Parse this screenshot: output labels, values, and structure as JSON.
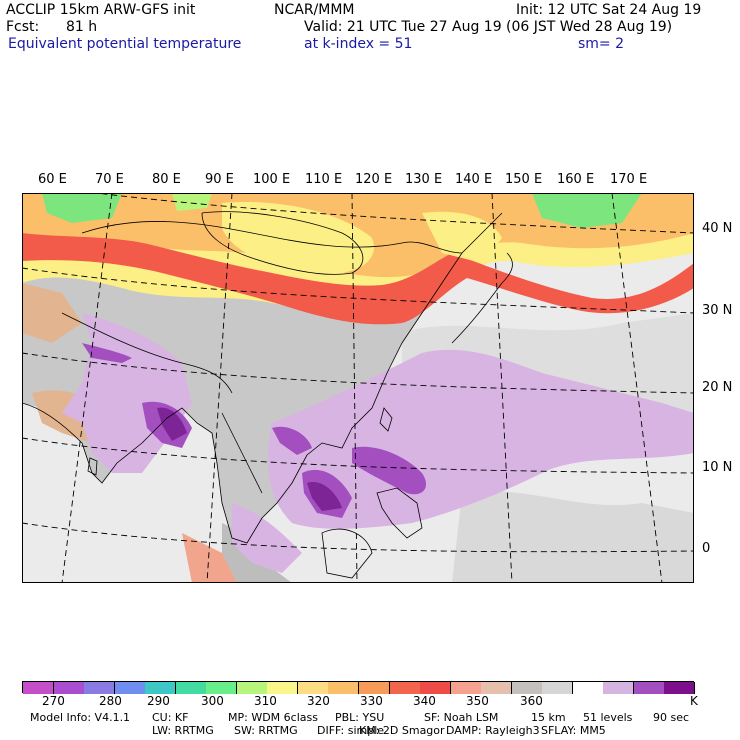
{
  "header": {
    "model": "ACCLIP 15km ARW-GFS init",
    "org": "NCAR/MMM",
    "init": "Init: 12 UTC Sat 24 Aug 19",
    "fcst_label": "Fcst:",
    "fcst_value": "81 h",
    "valid": "Valid: 21 UTC Tue 27 Aug 19 (06 JST Wed 28 Aug 19)",
    "field": "Equivalent potential temperature",
    "level": "at k-index =  51",
    "smooth": "sm= 2"
  },
  "map": {
    "lon_labels": [
      "60 E",
      "70 E",
      "80 E",
      "90 E",
      "100 E",
      "110 E",
      "120 E",
      "130 E",
      "140 E",
      "150 E",
      "160 E",
      "170 E"
    ],
    "lat_labels": [
      "40 N",
      "30 N",
      "20 N",
      "10 N",
      "0"
    ],
    "colors": {
      "ocean": "#ebebeb",
      "land_gray": "#c8c8c8",
      "land_tan": "#e2b48f",
      "yellow": "#fcef86",
      "orange": "#fbbf6a",
      "red": "#f25a4a",
      "green": "#7ce57d",
      "lavender": "#d8b4e2",
      "purple": "#a34fbf",
      "dark_purple": "#7d2596"
    }
  },
  "colorbar": {
    "colors": [
      "#c54ec9",
      "#a94ed0",
      "#8a7be4",
      "#6f8ef0",
      "#3dc8c6",
      "#42dca2",
      "#68ee8a",
      "#b8f57c",
      "#fbf68a",
      "#fddc84",
      "#fbbf6a",
      "#f79b59",
      "#f3644f",
      "#f04c47",
      "#f5a38f",
      "#e6c0ad",
      "#c5c0bc",
      "#d8d6d4",
      "#ffffff",
      "#d6b4e2",
      "#a34fbf",
      "#7d0f8c"
    ],
    "ticks": [
      "270",
      "280",
      "290",
      "300",
      "310",
      "320",
      "330",
      "340",
      "350",
      "360"
    ],
    "unit": "K"
  },
  "model_info": {
    "line1": [
      "Model Info: V4.1.1",
      "CU: KF",
      "MP: WDM 6class",
      "PBL: YSU",
      "SF: Noah LSM",
      "15 km",
      "51 levels",
      "90 sec"
    ],
    "line2": [
      "LW: RRTMG",
      "SW: RRTMG",
      "DIFF: simple",
      "KM: 2D Smagor",
      "DAMP: Rayleigh3",
      "SFLAY: MM5"
    ]
  }
}
